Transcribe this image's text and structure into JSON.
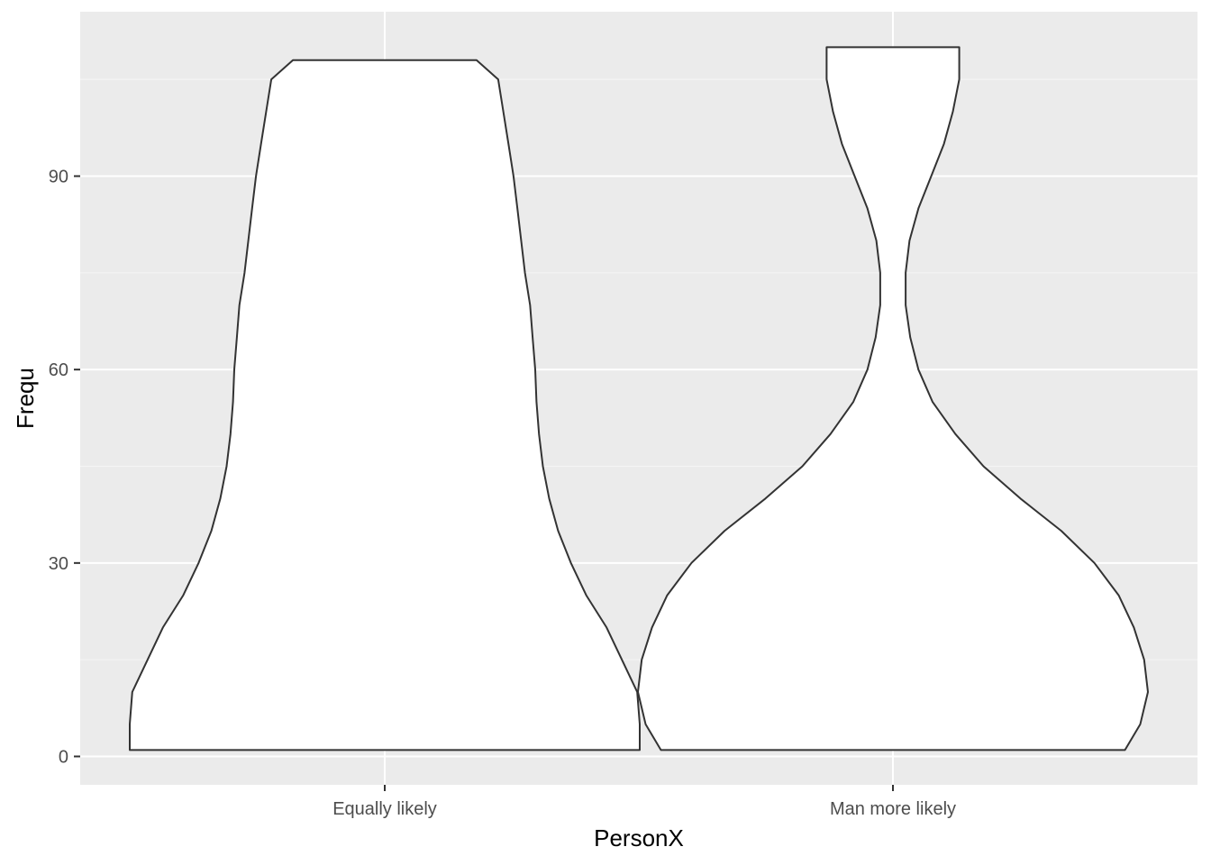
{
  "chart_data": {
    "type": "violin",
    "title": "",
    "xlabel": "PersonX",
    "ylabel": "Frequ",
    "categories": [
      "Equally likely",
      "Man more likely"
    ],
    "y_ticks": [
      0,
      30,
      60,
      90
    ],
    "ylim": [
      -4.4,
      115.5
    ],
    "grid": true,
    "legend": "none",
    "colors": {
      "panel": "#ebebeb",
      "grid_major": "#ffffff",
      "grid_minor": "#f5f5f5",
      "violin_fill": "#ffffff",
      "violin_stroke": "#333333",
      "tick": "#333333"
    },
    "density_profiles": [
      {
        "category": "Equally likely",
        "y_min": 1,
        "y_max": 108,
        "profile": [
          [
            1,
            1.0
          ],
          [
            5,
            1.0
          ],
          [
            10,
            0.99
          ],
          [
            15,
            0.93
          ],
          [
            20,
            0.87
          ],
          [
            25,
            0.79
          ],
          [
            30,
            0.73
          ],
          [
            35,
            0.68
          ],
          [
            40,
            0.645
          ],
          [
            45,
            0.62
          ],
          [
            50,
            0.605
          ],
          [
            55,
            0.595
          ],
          [
            60,
            0.59
          ],
          [
            65,
            0.58
          ],
          [
            70,
            0.57
          ],
          [
            75,
            0.55
          ],
          [
            80,
            0.535
          ],
          [
            85,
            0.52
          ],
          [
            90,
            0.505
          ],
          [
            95,
            0.485
          ],
          [
            100,
            0.465
          ],
          [
            105,
            0.445
          ],
          [
            108,
            0.36
          ]
        ]
      },
      {
        "category": "Man more likely",
        "y_min": 1,
        "y_max": 110,
        "profile": [
          [
            1,
            0.91
          ],
          [
            5,
            0.97
          ],
          [
            10,
            1.0
          ],
          [
            15,
            0.985
          ],
          [
            20,
            0.945
          ],
          [
            25,
            0.885
          ],
          [
            30,
            0.79
          ],
          [
            35,
            0.66
          ],
          [
            40,
            0.5
          ],
          [
            45,
            0.355
          ],
          [
            50,
            0.245
          ],
          [
            55,
            0.155
          ],
          [
            60,
            0.1
          ],
          [
            65,
            0.068
          ],
          [
            70,
            0.05
          ],
          [
            75,
            0.05
          ],
          [
            80,
            0.065
          ],
          [
            85,
            0.1
          ],
          [
            90,
            0.15
          ],
          [
            95,
            0.2
          ],
          [
            100,
            0.235
          ],
          [
            105,
            0.26
          ],
          [
            110,
            0.26
          ]
        ]
      }
    ]
  }
}
